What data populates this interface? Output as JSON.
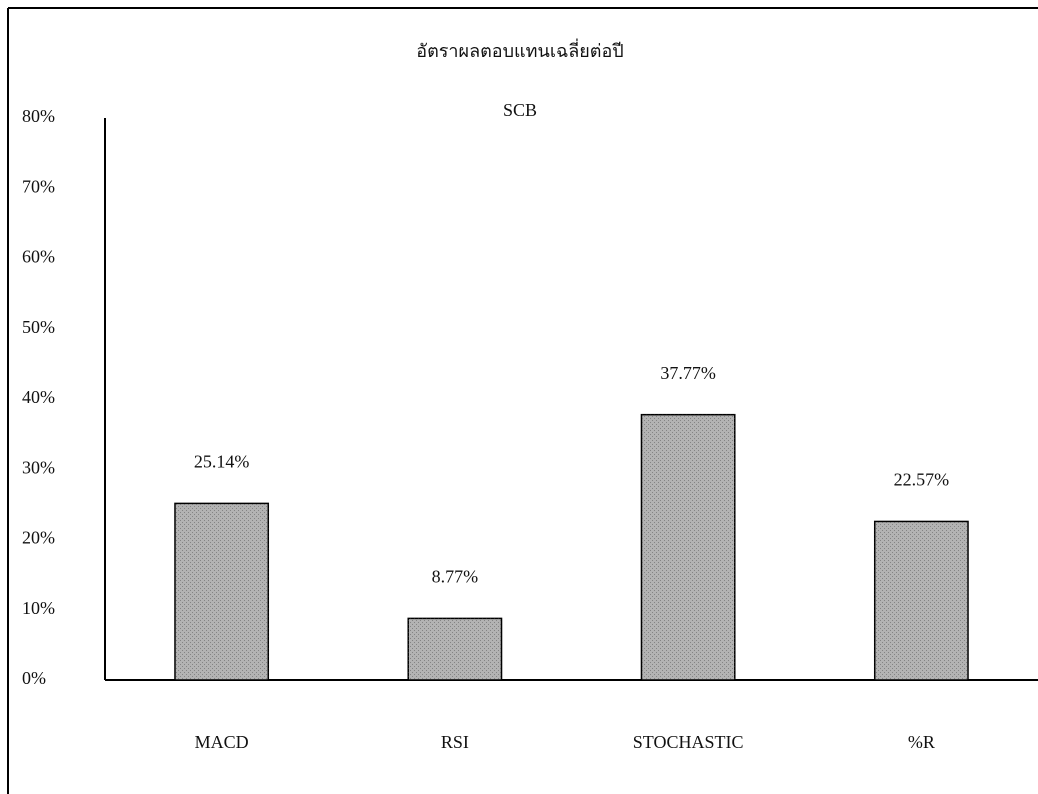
{
  "chart_data": {
    "type": "bar",
    "title": "อัตราผลตอบแทนเฉลี่ยต่อปี",
    "subtitle": "SCB",
    "categories": [
      "MACD",
      "RSI",
      "STOCHASTIC",
      "%R"
    ],
    "values": [
      25.14,
      8.77,
      37.77,
      22.57
    ],
    "value_labels": [
      "25.14%",
      "8.77%",
      "37.77%",
      "22.57%"
    ],
    "color": "#b3b3b3",
    "ylim": [
      0,
      80
    ],
    "yticks": [
      {
        "value": 0,
        "label": "0%"
      },
      {
        "value": 10,
        "label": "10%"
      },
      {
        "value": 20,
        "label": "20%"
      },
      {
        "value": 30,
        "label": "30%"
      },
      {
        "value": 40,
        "label": "40%"
      },
      {
        "value": 50,
        "label": "50%"
      },
      {
        "value": 60,
        "label": "60%"
      },
      {
        "value": 70,
        "label": "70%"
      },
      {
        "value": 80,
        "label": "80%"
      }
    ],
    "grid": false
  }
}
